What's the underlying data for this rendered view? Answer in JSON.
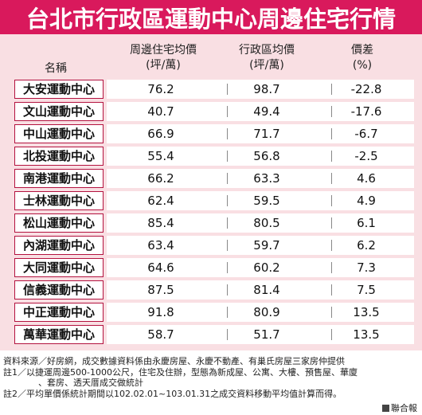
{
  "title": "台北市行政區運動中心周邊住宅行情",
  "headers": {
    "name": "名稱",
    "col1_line1": "周邊住宅均價",
    "col1_line2": "(坪/萬)",
    "col2_line1": "行政區均價",
    "col2_line2": "(坪/萬)",
    "col3_line1": "價差",
    "col3_line2": "(%)"
  },
  "rows": [
    {
      "name": "大安運動中心",
      "nearby": "76.2",
      "district": "98.7",
      "diff": "-22.8"
    },
    {
      "name": "文山運動中心",
      "nearby": "40.7",
      "district": "49.4",
      "diff": "-17.6"
    },
    {
      "name": "中山運動中心",
      "nearby": "66.9",
      "district": "71.7",
      "diff": "-6.7"
    },
    {
      "name": "北投運動中心",
      "nearby": "55.4",
      "district": "56.8",
      "diff": "-2.5"
    },
    {
      "name": "南港運動中心",
      "nearby": "66.2",
      "district": "63.3",
      "diff": "4.6"
    },
    {
      "name": "士林運動中心",
      "nearby": "62.4",
      "district": "59.5",
      "diff": "4.9"
    },
    {
      "name": "松山運動中心",
      "nearby": "85.4",
      "district": "80.5",
      "diff": "6.1"
    },
    {
      "name": "內湖運動中心",
      "nearby": "63.4",
      "district": "59.7",
      "diff": "6.2"
    },
    {
      "name": "大同運動中心",
      "nearby": "64.6",
      "district": "60.2",
      "diff": "7.3"
    },
    {
      "name": "信義運動中心",
      "nearby": "87.5",
      "district": "81.4",
      "diff": "7.5"
    },
    {
      "name": "中正運動中心",
      "nearby": "91.8",
      "district": "80.9",
      "diff": "13.5"
    },
    {
      "name": "萬華運動中心",
      "nearby": "58.7",
      "district": "51.7",
      "diff": "13.5"
    }
  ],
  "notes": {
    "line1": "資料來源／好房網，成交數據資料係由永慶房屋、永慶不動產、有巢氏房屋三家房仲提供",
    "line2": "註1／以捷運周邊500-1000公尺，住宅及住辦，型態為新成屋、公寓、大樓、預售屋、華廈",
    "line3": "、套房、透天厝成交做統計",
    "line4": "註2／平均單價係統計期間以102.02.01~103.01.31之成交資料移動平均值計算而得。"
  },
  "source": "聯合報",
  "colors": {
    "title_bg": "#d9195c",
    "panel_bg": "#f9dfe3",
    "name_border": "#b3123f"
  }
}
